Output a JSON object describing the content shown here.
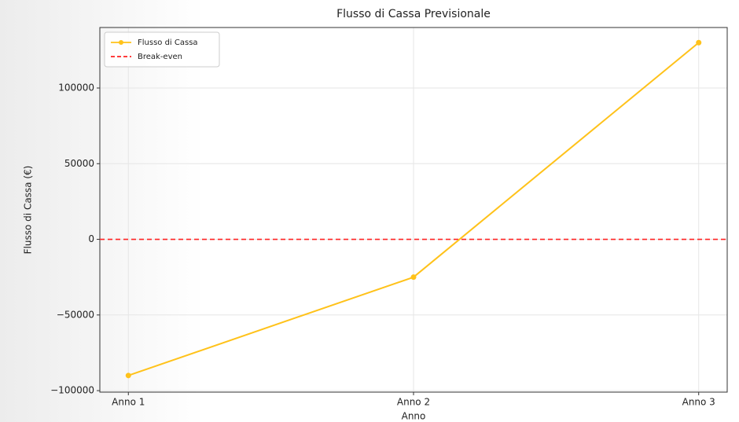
{
  "chart_data": {
    "type": "line",
    "title": "Flusso di Cassa Previsionale",
    "x_label": "Anno",
    "y_label": "Flusso di Cassa (€)",
    "categories": [
      "Anno 1",
      "Anno 2",
      "Anno 3"
    ],
    "series": [
      {
        "name": "Flusso di Cassa",
        "color": "#ffc21a",
        "values": [
          -90000,
          -25000,
          130000
        ]
      }
    ],
    "hlines": [
      {
        "name": "Break-even",
        "color": "#ff2222",
        "value": 0,
        "dashed": true
      }
    ],
    "ylim": [
      -101000,
      140000
    ],
    "yticks": [
      {
        "value": -100000,
        "label": "−100000"
      },
      {
        "value": -50000,
        "label": "−50000"
      },
      0,
      50000,
      100000
    ],
    "grid": true,
    "legend": "upper left"
  }
}
